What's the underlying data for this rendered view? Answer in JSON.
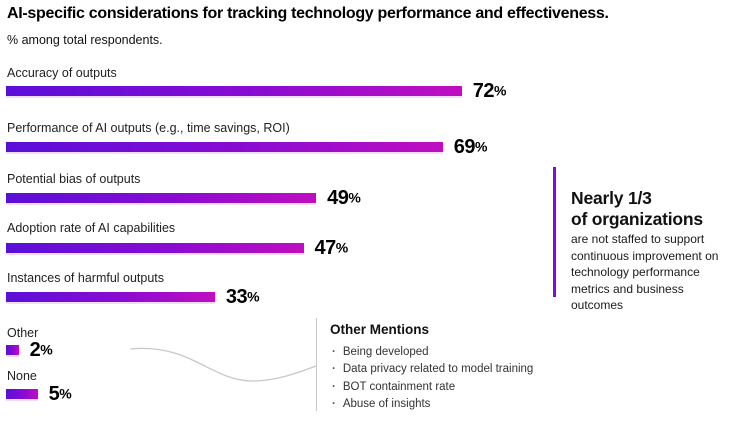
{
  "title": "AI-specific considerations for tracking technology performance and effectiveness.",
  "subtitle": "% among total respondents.",
  "percent_suffix": "%",
  "chart_data": {
    "type": "bar",
    "orientation": "horizontal",
    "title": "AI-specific considerations for tracking technology performance and effectiveness.",
    "subtitle": "% among total respondents.",
    "unit": "%",
    "xlim": [
      0,
      100
    ],
    "grid": false,
    "legend": "none",
    "categories": [
      "Accuracy of outputs",
      "Performance of AI outputs (e.g., time savings, ROI)",
      "Potential bias of outputs",
      "Adoption rate of AI capabilities",
      "Instances of harmful outputs",
      "Other",
      "None"
    ],
    "values": [
      72,
      69,
      49,
      47,
      33,
      2,
      5
    ],
    "value_labels": [
      "72%",
      "69%",
      "49%",
      "47%",
      "33%",
      "2%",
      "5%"
    ],
    "bar_gradient": [
      "#5a0fd8",
      "#c00ec0"
    ]
  },
  "callout": {
    "heading_line1": "Nearly 1/3",
    "heading_line2": "of organizations",
    "body": "are not staffed to support continuous improvement on technology performance metrics and business outcomes",
    "accent_color": "#7e0ce8"
  },
  "other_mentions": {
    "heading": "Other Mentions",
    "items": [
      "Being developed",
      "Data privacy related to model training",
      "BOT containment rate",
      "Abuse of insights"
    ]
  }
}
